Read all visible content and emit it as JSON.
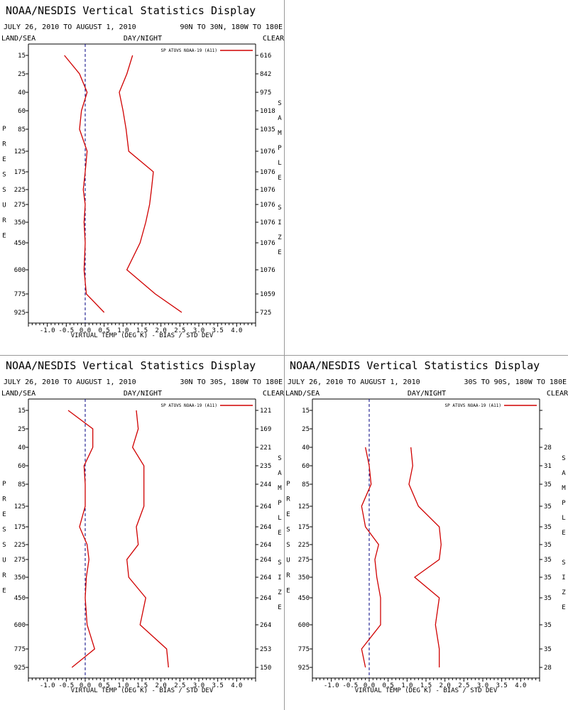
{
  "colors": {
    "series": "#d00000",
    "zero_line": "#000080",
    "axis": "#000000"
  },
  "chart_data": [
    {
      "type": "line",
      "title": "NOAA/NESDIS Vertical Statistics Display",
      "date_range": "JULY 26, 2010 TO AUGUST 1, 2010",
      "region": "90N TO 30N, 180W TO 180E",
      "surface": "LAND/SEA",
      "time": "DAY/NIGHT",
      "sky": "CLEAR",
      "xlabel": "VIRTUAL TEMP (DEG K) - BIAS / STD DEV",
      "ylabel": "PRESSURE",
      "right_label": "SAMPLE SIZE",
      "legend": "SP ATOVS NOAA-19 (A11)",
      "xlim": [
        -1.5,
        4.5
      ],
      "x_ticks": [
        "-1.0",
        "-0.5",
        "0.0",
        "0.5",
        "1.0",
        "1.5",
        "2.0",
        "2.5",
        "3.0",
        "3.5",
        "4.0"
      ],
      "pressure_levels": [
        "15",
        "25",
        "40",
        "60",
        "85",
        "125",
        "175",
        "225",
        "275",
        "350",
        "450",
        "600",
        "775",
        "925"
      ],
      "sample_size": [
        "616",
        "842",
        "975",
        "1018",
        "1035",
        "1076",
        "1076",
        "1076",
        "1076",
        "1076",
        "1076",
        "1076",
        "1059",
        "725"
      ],
      "series": [
        {
          "stat": "bias",
          "values": [
            -0.55,
            -0.15,
            0.05,
            -0.1,
            -0.15,
            0.05,
            0.0,
            -0.05,
            0.0,
            -0.03,
            0.0,
            -0.03,
            0.03,
            0.5
          ]
        },
        {
          "stat": "std_dev",
          "values": [
            1.25,
            1.1,
            0.9,
            1.0,
            1.08,
            1.15,
            1.8,
            1.75,
            1.7,
            1.6,
            1.45,
            1.1,
            1.85,
            2.55
          ]
        }
      ]
    },
    {
      "type": "line",
      "title": "NOAA/NESDIS Vertical Statistics Display",
      "date_range": "JULY 26, 2010 TO AUGUST 1, 2010",
      "region": "30N TO 30S, 180W TO 180E",
      "surface": "LAND/SEA",
      "time": "DAY/NIGHT",
      "sky": "CLEAR",
      "xlabel": "VIRTUAL TEMP (DEG K) - BIAS / STD DEV",
      "ylabel": "PRESSURE",
      "right_label": "SAMPLE SIZE",
      "legend": "SP ATOVS NOAA-19 (A11)",
      "xlim": [
        -1.5,
        4.5
      ],
      "x_ticks": [
        "-1.0",
        "-0.5",
        "0.0",
        "0.5",
        "1.0",
        "1.5",
        "2.0",
        "2.5",
        "3.0",
        "3.5",
        "4.0"
      ],
      "pressure_levels": [
        "15",
        "25",
        "40",
        "60",
        "85",
        "125",
        "175",
        "225",
        "275",
        "350",
        "450",
        "600",
        "775",
        "925"
      ],
      "sample_size": [
        "121",
        "169",
        "221",
        "235",
        "244",
        "264",
        "264",
        "264",
        "264",
        "264",
        "264",
        "264",
        "253",
        "150"
      ],
      "series": [
        {
          "stat": "bias",
          "values": [
            -0.45,
            0.2,
            0.2,
            -0.03,
            0.0,
            0.0,
            -0.15,
            0.05,
            0.1,
            0.03,
            0.0,
            0.05,
            0.25,
            -0.35
          ]
        },
        {
          "stat": "std_dev",
          "values": [
            1.35,
            1.4,
            1.25,
            1.55,
            1.55,
            1.55,
            1.35,
            1.4,
            1.1,
            1.15,
            1.6,
            1.45,
            2.15,
            2.2
          ]
        }
      ]
    },
    {
      "type": "line",
      "title": "NOAA/NESDIS Vertical Statistics Display",
      "date_range": "JULY 26, 2010 TO AUGUST 1, 2010",
      "region": "30S TO 90S, 180W TO 180E",
      "surface": "LAND/SEA",
      "time": "DAY/NIGHT",
      "sky": "CLEAR",
      "xlabel": "VIRTUAL TEMP (DEG K) - BIAS / STD DEV",
      "ylabel": "PRESSURE",
      "right_label": "SAMPLE SIZE",
      "legend": "SP ATOVS NOAA-19 (A11)",
      "xlim": [
        -1.5,
        4.5
      ],
      "x_ticks": [
        "-1.0",
        "-0.5",
        "0.0",
        "0.5",
        "1.0",
        "1.5",
        "2.0",
        "2.5",
        "3.0",
        "3.5",
        "4.0"
      ],
      "pressure_levels": [
        "15",
        "25",
        "40",
        "60",
        "85",
        "125",
        "175",
        "225",
        "275",
        "350",
        "450",
        "600",
        "775",
        "925"
      ],
      "sample_size": [
        "",
        "",
        "28",
        "31",
        "35",
        "35",
        "35",
        "35",
        "35",
        "35",
        "35",
        "35",
        "35",
        "28"
      ],
      "series": [
        {
          "stat": "bias",
          "values": [
            null,
            null,
            -0.1,
            0.0,
            0.05,
            -0.2,
            -0.1,
            0.25,
            0.15,
            0.2,
            0.3,
            0.3,
            -0.2,
            -0.1
          ]
        },
        {
          "stat": "std_dev",
          "values": [
            null,
            null,
            1.1,
            1.15,
            1.05,
            1.3,
            1.85,
            1.9,
            1.85,
            1.2,
            1.85,
            1.75,
            1.85,
            1.85
          ]
        }
      ]
    }
  ]
}
